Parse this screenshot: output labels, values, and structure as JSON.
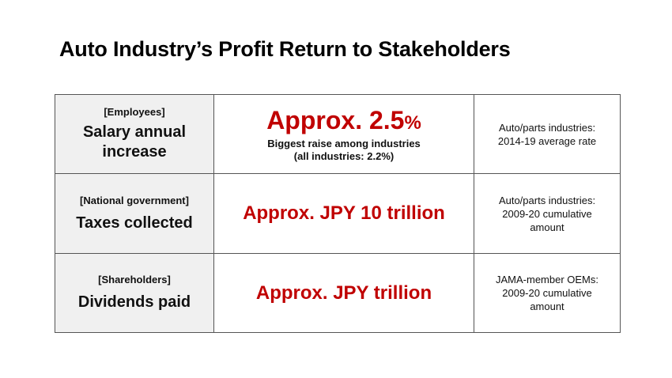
{
  "slide": {
    "title": "Auto Industry’s Profit Return to Stakeholders"
  },
  "rows": [
    {
      "stakeholder": "[Employees]",
      "label_line1": "Salary annual",
      "label_line2": "increase",
      "value_main": "Approx. 2.5",
      "value_unit": "%",
      "note_line1": "Biggest raise among industries",
      "note_line2": "(all industries: 2.2%)",
      "source_line1": "Auto/parts industries:",
      "source_line2": "2014-19 average rate"
    },
    {
      "stakeholder": "[National government]",
      "label": "Taxes collected",
      "value": "Approx. JPY 10 trillion",
      "source_line1": "Auto/parts industries:",
      "source_line2": "2009-20 cumulative",
      "source_line3": "amount"
    },
    {
      "stakeholder": "[Shareholders]",
      "label": "Dividends paid",
      "value": "Approx. JPY trillion",
      "source_line1": "JAMA-member OEMs:",
      "source_line2": "2009-20 cumulative",
      "source_line3": "amount"
    }
  ],
  "colors": {
    "accent": "#c00000",
    "label_cell_bg": "#f0f0f0",
    "border": "#555555"
  }
}
